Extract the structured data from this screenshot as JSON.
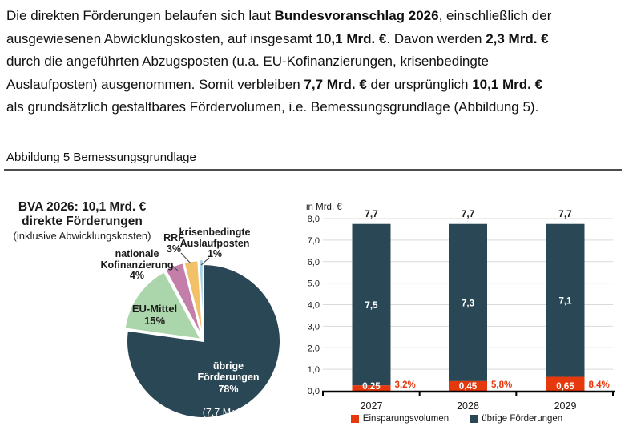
{
  "page": {
    "paragraph": [
      [
        {
          "t": "Die direkten Förderungen belaufen sich laut ",
          "b": 0
        },
        {
          "t": "Bundesvoranschlag 2026",
          "b": 1
        },
        {
          "t": ", einschließlich der",
          "b": 0
        }
      ],
      [
        {
          "t": "ausgewiesenen Abwicklungskosten, auf insgesamt ",
          "b": 0
        },
        {
          "t": "10,1 Mrd. €",
          "b": 1
        },
        {
          "t": ". Davon werden ",
          "b": 0
        },
        {
          "t": "2,3 Mrd. €",
          "b": 1
        }
      ],
      [
        {
          "t": "durch die angeführten Abzugsposten (u.a. EU-Kofinanzierungen, krisenbedingte",
          "b": 0
        }
      ],
      [
        {
          "t": "Auslaufposten) ausgenommen. Somit verbleiben ",
          "b": 0
        },
        {
          "t": "7,7 Mrd. €",
          "b": 1
        },
        {
          "t": " der ursprünglich ",
          "b": 0
        },
        {
          "t": "10,1 Mrd. €",
          "b": 1
        }
      ],
      [
        {
          "t": "als grundsätzlich gestaltbares Fördervolumen, i.e. Bemessungsgrundlage (Abbildung 5).",
          "b": 0
        }
      ]
    ],
    "figure_caption": "Abbildung 5 Bemessungsgrundlage"
  },
  "colors": {
    "dark_teal": "#2a4755",
    "red": "#e5380d",
    "green": "#abd5aa",
    "pink": "#c37fa9",
    "orange": "#f2c066",
    "light_blue": "#a9d6e5",
    "gridline": "#d9d9d9",
    "axis": "#000000",
    "leader": "#555555"
  },
  "chart_data": [
    {
      "type": "pie",
      "title": "BVA 2026: 10,1 Mrd. € direkte Förderungen (inklusive Abwicklungskosten)",
      "slices": [
        {
          "label": "übrige Förderungen",
          "pct": 78,
          "note": "7,7 Mrd. €",
          "color": "#2a4755"
        },
        {
          "label": "EU-Mittel",
          "pct": 15,
          "color": "#abd5aa"
        },
        {
          "label": "nationale Kofinanzierung",
          "pct": 4,
          "color": "#c37fa9"
        },
        {
          "label": "RRF",
          "pct": 3,
          "color": "#f2c066"
        },
        {
          "label": "krisenbedingte Auslaufposten",
          "pct": 1,
          "color": "#a9d6e5"
        }
      ],
      "display": {
        "title_line1": "BVA 2026: 10,1 Mrd. €",
        "title_line2": "direkte Förderungen",
        "title_line3": "(inklusive Abwicklungskosten)",
        "nat_label": "nationale\nKofinanzierung\n4%",
        "rrf_label": "RRF\n3%",
        "krisen_label": "krisenbedingte\nAuslaufposten\n1%",
        "eu_label": "EU-Mittel\n15%",
        "uebrige_label": "übrige\nFörderungen\n78%",
        "uebrige_note": "(7,7 Mrd. €)"
      }
    },
    {
      "type": "bar",
      "stacked": true,
      "unit_label": "in Mrd. €",
      "categories": [
        "2027",
        "2028",
        "2029"
      ],
      "series": [
        {
          "name": "Einsparungsvolumen",
          "color": "#e5380d",
          "values": [
            0.25,
            0.45,
            0.65
          ],
          "value_labels": [
            "0,25",
            "0,45",
            "0,65"
          ],
          "pct_labels": [
            "3,2%",
            "5,8%",
            "8,4%"
          ]
        },
        {
          "name": "übrige Förderungen",
          "color": "#2a4755",
          "values": [
            7.5,
            7.3,
            7.1
          ],
          "value_labels": [
            "7,5",
            "7,3",
            "7,1"
          ]
        }
      ],
      "total_labels": [
        "7,7",
        "7,7",
        "7,7"
      ],
      "ylim": [
        0,
        8
      ],
      "ytick_labels": [
        "0,0",
        "1,0",
        "2,0",
        "3,0",
        "4,0",
        "5,0",
        "6,0",
        "7,0",
        "8,0"
      ],
      "grid": true,
      "legend_position": "bottom"
    }
  ]
}
